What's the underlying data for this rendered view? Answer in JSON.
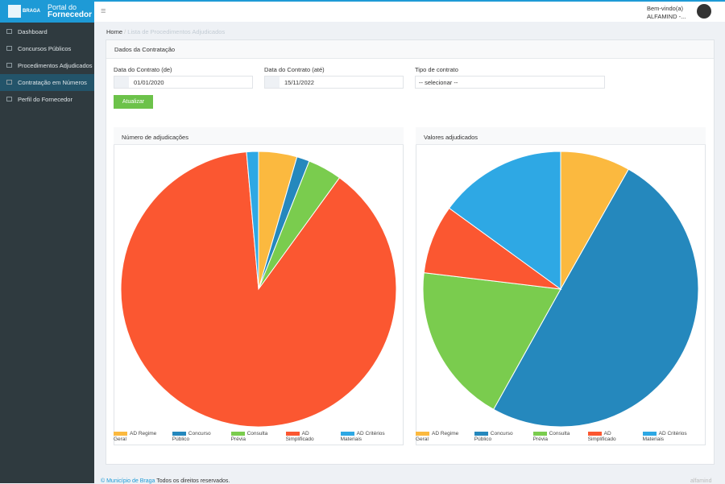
{
  "sidebar": {
    "brand_small": "BRAGA",
    "brand_top": "Portal do",
    "brand_bottom": "Fornecedor",
    "menu": [
      "Dashboard",
      "Concursos Públicos",
      "Procedimentos Adjudicados",
      "Contratação em Números",
      "Perfil do Fornecedor"
    ]
  },
  "header": {
    "greeting": "Bem-vindo(a)",
    "user": "ALFAMIND -..."
  },
  "breadcrumb": [
    "Home",
    "Lista de Procedimentos Adjudicados"
  ],
  "panel_title": "Dados da Contratação",
  "form": {
    "fields": [
      {
        "label": "Data do Contrato (de)",
        "value": "01/01/2020"
      },
      {
        "label": "Data do Contrato (até)",
        "value": "15/11/2022"
      },
      {
        "label": "Tipo de contrato",
        "value": "-- selecionar --"
      }
    ],
    "button": "Atualizar"
  },
  "chart_data": [
    {
      "type": "pie",
      "title": "Número de adjudicações",
      "categories": [
        "AD Regime Geral",
        "Concurso Público",
        "Consulta Prévia",
        "AD Simplificado",
        "AD Critérios Materiais"
      ],
      "values": [
        4.5,
        1.5,
        4,
        88.6,
        1.4
      ],
      "colors": [
        "#fbb93f",
        "#2588bd",
        "#7acc4e",
        "#fb5731",
        "#2ea8e4"
      ]
    },
    {
      "type": "pie",
      "title": "Valores adjudicados",
      "categories": [
        "AD Regime Geral",
        "Concurso Público",
        "Consulta Prévia",
        "AD Simplificado",
        "AD Critérios Materiais"
      ],
      "values": [
        8.2,
        49.9,
        18.8,
        8.1,
        15
      ],
      "colors": [
        "#fbb93f",
        "#2588bd",
        "#7acc4e",
        "#fb5731",
        "#2ea8e4"
      ]
    }
  ],
  "footer": {
    "link": "© Município de Braga",
    "text": "Todos os direitos reservados.",
    "brand": "alfamind"
  }
}
